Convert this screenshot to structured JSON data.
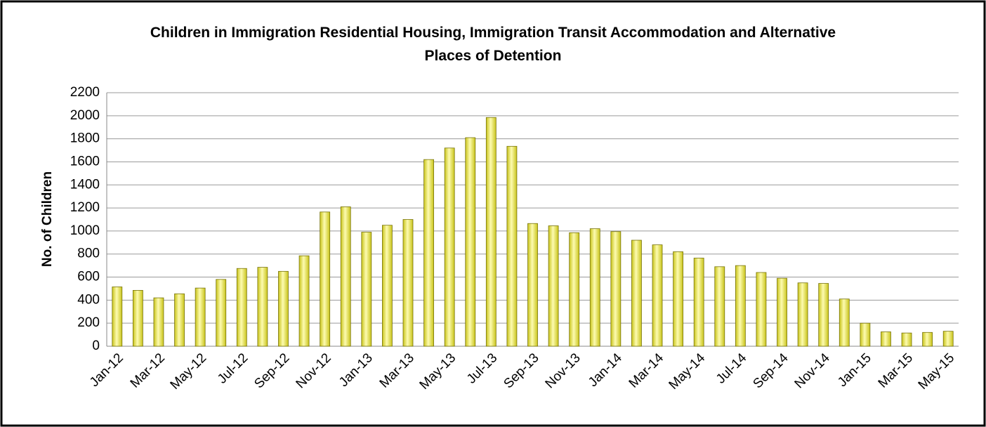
{
  "chart_data": {
    "type": "bar",
    "title": "Children in Immigration Residential Housing, Immigration Transit Accommodation and Alternative Places of Detention",
    "y_label": "No. of Children",
    "categories": [
      "Jan-12",
      null,
      "Mar-12",
      null,
      "May-12",
      null,
      "Jul-12",
      null,
      "Sep-12",
      null,
      "Nov-12",
      null,
      "Jan-13",
      null,
      "Mar-13",
      null,
      "May-13",
      null,
      "Jul-13",
      null,
      "Sep-13",
      null,
      "Nov-13",
      null,
      "Jan-14",
      null,
      "Mar-14",
      null,
      "May-14",
      null,
      "Jul-14",
      null,
      "Sep-14",
      null,
      "Nov-14",
      null,
      "Jan-15",
      null,
      "Mar-15",
      null,
      "May-15"
    ],
    "values": [
      515,
      485,
      420,
      455,
      505,
      580,
      675,
      685,
      650,
      785,
      1165,
      1210,
      990,
      1050,
      1100,
      1620,
      1720,
      1810,
      1985,
      1735,
      1065,
      1045,
      985,
      1020,
      995,
      920,
      880,
      820,
      765,
      690,
      700,
      640,
      590,
      550,
      545,
      410,
      200,
      125,
      115,
      120,
      130
    ],
    "color": "#c9c41a",
    "ylim": [
      0,
      2200
    ],
    "yticks": [
      0,
      200,
      400,
      600,
      800,
      1000,
      1200,
      1400,
      1600,
      1800,
      2000,
      2200
    ],
    "grid": true
  }
}
